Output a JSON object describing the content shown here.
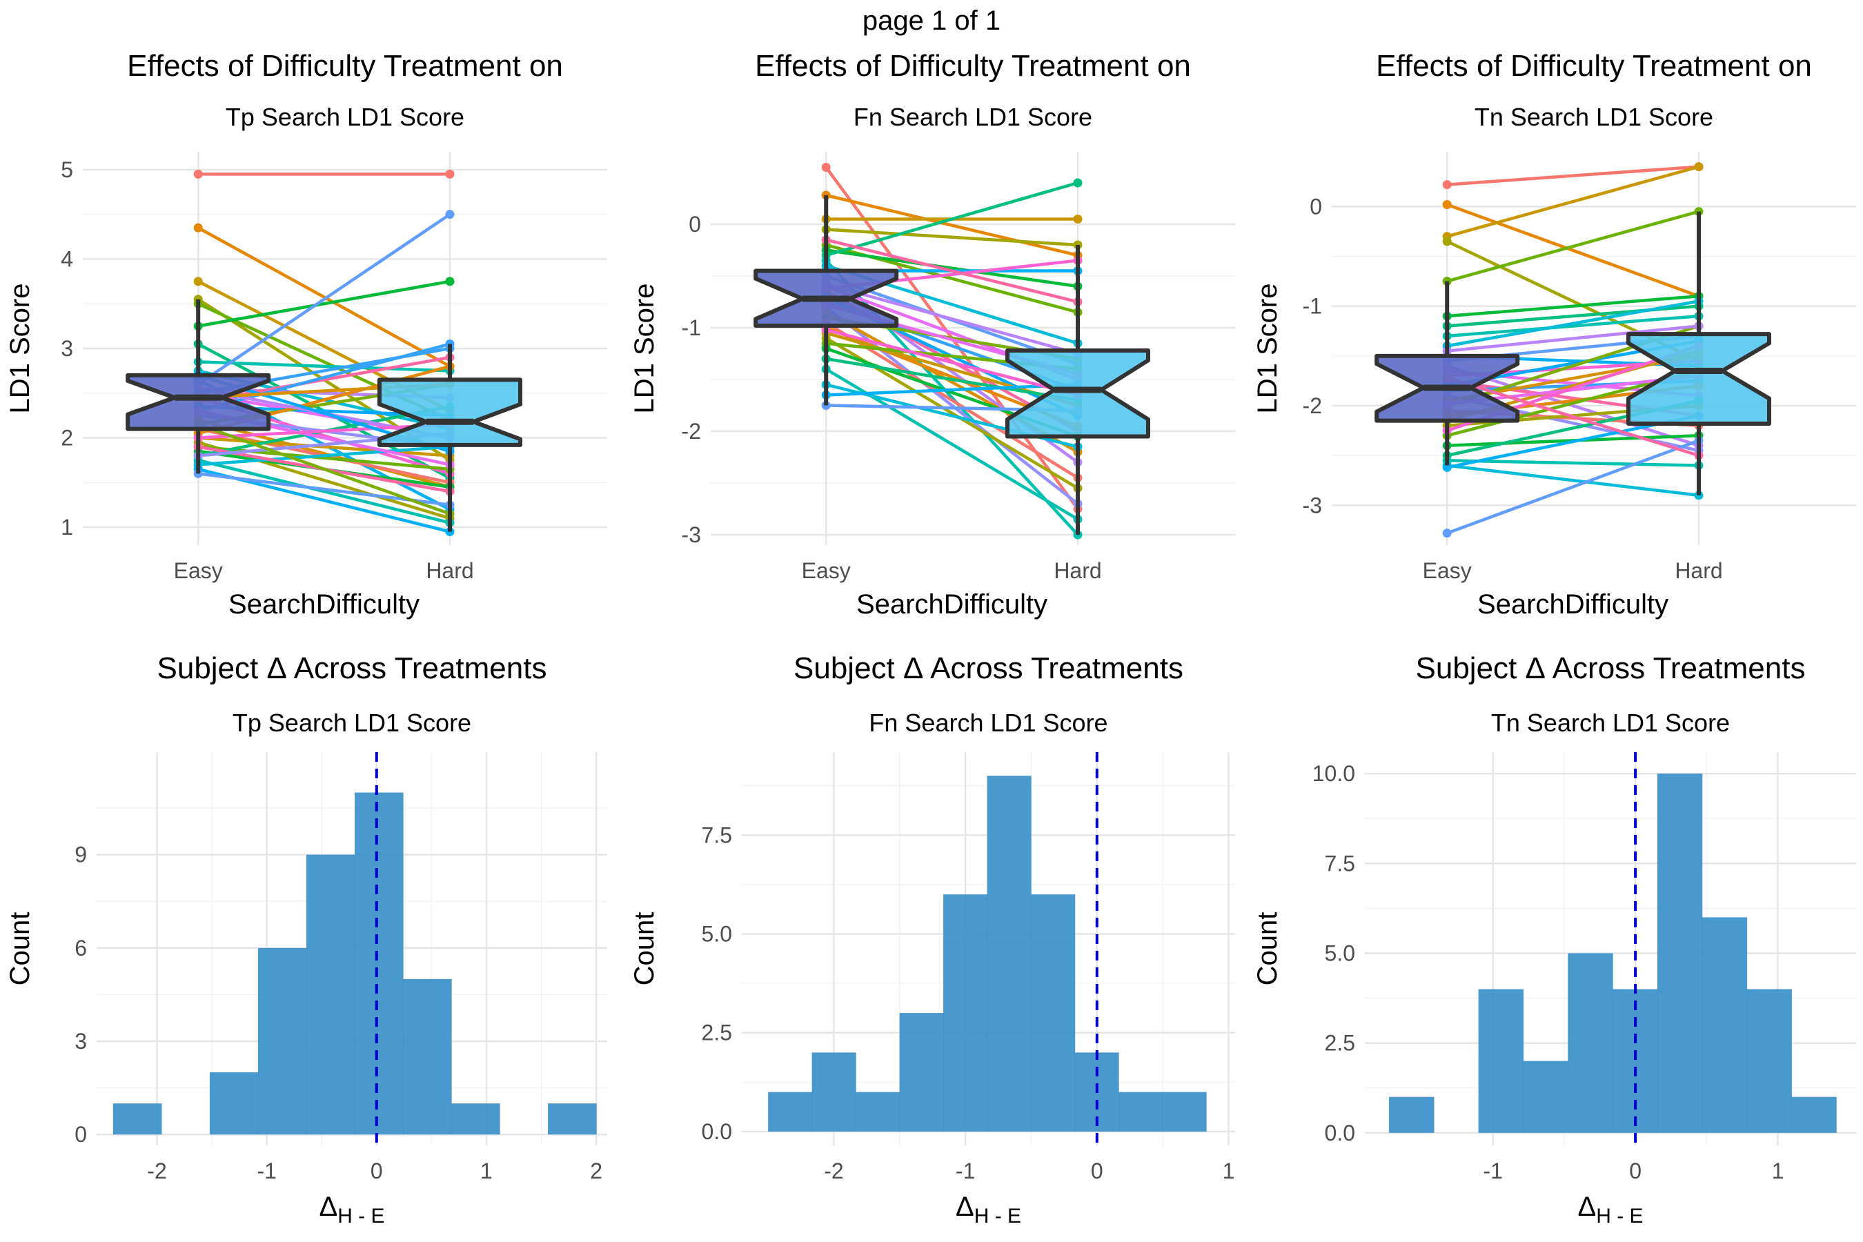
{
  "page_title": "page 1 of 1",
  "colors": {
    "box_easy": "#5b6cc6",
    "box_hard": "#55c8f0",
    "hist": "#3a8fca",
    "ref": "#0000cc"
  },
  "chart_data": [
    {
      "type": "box+paired-lines",
      "title": "Effects of Difficulty Treatment on",
      "subtitle": "Tp Search LD1 Score",
      "xlabel": "SearchDifficulty",
      "ylabel": "LD1 Score",
      "categories": [
        "Easy",
        "Hard"
      ],
      "ylim": [
        0.8,
        5.2
      ],
      "yticks": [
        1,
        2,
        3,
        4,
        5
      ],
      "box": [
        {
          "category": "Easy",
          "min": 1.6,
          "q1": 2.1,
          "median": 2.45,
          "q3": 2.7,
          "max": 3.55
        },
        {
          "category": "Hard",
          "min": 0.95,
          "q1": 1.92,
          "median": 2.18,
          "q3": 2.65,
          "max": 3.05
        }
      ],
      "pairs": [
        [
          4.95,
          4.95
        ],
        [
          4.35,
          2.8
        ],
        [
          3.75,
          2.3
        ],
        [
          3.55,
          1.75
        ],
        [
          3.5,
          2.2
        ],
        [
          3.25,
          3.75
        ],
        [
          3.05,
          1.55
        ],
        [
          2.85,
          2.75
        ],
        [
          2.75,
          2.1
        ],
        [
          2.65,
          1.2
        ],
        [
          2.6,
          4.5
        ],
        [
          2.55,
          2.45
        ],
        [
          2.5,
          2.0
        ],
        [
          2.45,
          1.6
        ],
        [
          2.4,
          2.9
        ],
        [
          2.35,
          2.25
        ],
        [
          2.3,
          3.05
        ],
        [
          2.25,
          1.9
        ],
        [
          2.2,
          1.45
        ],
        [
          2.15,
          2.6
        ],
        [
          2.1,
          1.5
        ],
        [
          2.05,
          2.8
        ],
        [
          2.0,
          1.8
        ],
        [
          1.95,
          1.1
        ],
        [
          1.9,
          1.65
        ],
        [
          1.85,
          1.45
        ],
        [
          1.8,
          2.35
        ],
        [
          1.75,
          1.05
        ],
        [
          1.7,
          1.9
        ],
        [
          1.65,
          0.95
        ],
        [
          1.6,
          1.25
        ],
        [
          2.55,
          2.0
        ],
        [
          2.3,
          1.7
        ],
        [
          2.0,
          2.15
        ],
        [
          1.9,
          1.4
        ],
        [
          2.7,
          1.85
        ],
        [
          2.5,
          3.0
        ],
        [
          1.8,
          2.05
        ],
        [
          2.45,
          2.6
        ],
        [
          2.15,
          1.15
        ]
      ]
    },
    {
      "type": "box+paired-lines",
      "title": "Effects of Difficulty Treatment on",
      "subtitle": "Fn Search LD1 Score",
      "xlabel": "SearchDifficulty",
      "ylabel": "LD1 Score",
      "categories": [
        "Easy",
        "Hard"
      ],
      "ylim": [
        -3.1,
        0.7
      ],
      "yticks": [
        -3,
        -2,
        -1,
        0
      ],
      "box": [
        {
          "category": "Easy",
          "min": -1.75,
          "q1": -0.98,
          "median": -0.72,
          "q3": -0.45,
          "max": 0.28
        },
        {
          "category": "Hard",
          "min": -3.0,
          "q1": -2.05,
          "median": -1.6,
          "q3": -1.22,
          "max": -0.2
        }
      ],
      "pairs": [
        [
          0.55,
          -2.75
        ],
        [
          0.28,
          -0.3
        ],
        [
          0.05,
          0.05
        ],
        [
          -0.05,
          -0.2
        ],
        [
          -0.2,
          -0.85
        ],
        [
          -0.25,
          -0.6
        ],
        [
          -0.3,
          0.4
        ],
        [
          -0.35,
          -3.0
        ],
        [
          -0.4,
          -1.15
        ],
        [
          -0.45,
          -0.45
        ],
        [
          -0.5,
          -1.35
        ],
        [
          -0.55,
          -2.3
        ],
        [
          -0.6,
          -1.5
        ],
        [
          -0.62,
          -0.35
        ],
        [
          -0.65,
          -2.0
        ],
        [
          -0.7,
          -1.85
        ],
        [
          -0.75,
          -1.6
        ],
        [
          -0.8,
          -2.7
        ],
        [
          -0.85,
          -2.2
        ],
        [
          -0.9,
          -1.3
        ],
        [
          -0.95,
          -2.45
        ],
        [
          -1.0,
          -1.95
        ],
        [
          -1.05,
          -1.75
        ],
        [
          -1.1,
          -2.55
        ],
        [
          -1.15,
          -1.4
        ],
        [
          -1.2,
          -2.05
        ],
        [
          -1.3,
          -1.7
        ],
        [
          -1.4,
          -2.85
        ],
        [
          -1.55,
          -2.15
        ],
        [
          -1.65,
          -1.55
        ],
        [
          -1.75,
          -1.8
        ],
        [
          -0.58,
          -1.25
        ],
        [
          -0.78,
          -1.45
        ],
        [
          -1.02,
          -1.65
        ],
        [
          -0.15,
          -0.75
        ]
      ]
    },
    {
      "type": "box+paired-lines",
      "title": "Effects of Difficulty Treatment on",
      "subtitle": "Tn Search LD1 Score",
      "xlabel": "SearchDifficulty",
      "ylabel": "LD1 Score",
      "categories": [
        "Easy",
        "Hard"
      ],
      "ylim": [
        -3.4,
        0.55
      ],
      "yticks": [
        -3,
        -2,
        -1,
        0
      ],
      "box": [
        {
          "category": "Easy",
          "min": -2.6,
          "q1": -2.15,
          "median": -1.82,
          "q3": -1.5,
          "max": -0.75
        },
        {
          "category": "Hard",
          "min": -2.9,
          "q1": -2.18,
          "median": -1.65,
          "q3": -1.28,
          "max": -0.05
        }
      ],
      "pairs": [
        [
          0.22,
          0.4
        ],
        [
          0.02,
          -0.9
        ],
        [
          -0.3,
          0.4
        ],
        [
          -0.35,
          -1.55
        ],
        [
          -0.75,
          -0.05
        ],
        [
          -1.1,
          -0.9
        ],
        [
          -1.2,
          -1.0
        ],
        [
          -1.3,
          -1.1
        ],
        [
          -1.4,
          -0.95
        ],
        [
          -1.5,
          -1.6
        ],
        [
          -1.55,
          -1.3
        ],
        [
          -1.6,
          -2.4
        ],
        [
          -1.65,
          -1.9
        ],
        [
          -1.7,
          -1.55
        ],
        [
          -1.75,
          -2.1
        ],
        [
          -1.8,
          -1.35
        ],
        [
          -1.85,
          -1.75
        ],
        [
          -1.9,
          -2.45
        ],
        [
          -1.95,
          -1.5
        ],
        [
          -2.0,
          -1.2
        ],
        [
          -2.05,
          -2.2
        ],
        [
          -2.1,
          -1.8
        ],
        [
          -2.15,
          -1.45
        ],
        [
          -2.2,
          -2.0
        ],
        [
          -2.3,
          -1.65
        ],
        [
          -2.4,
          -2.3
        ],
        [
          -2.5,
          -1.95
        ],
        [
          -2.55,
          -2.6
        ],
        [
          -2.6,
          -2.9
        ],
        [
          -2.62,
          -2.1
        ],
        [
          -3.28,
          -2.35
        ],
        [
          -1.45,
          -1.2
        ],
        [
          -1.98,
          -1.7
        ],
        [
          -2.25,
          -1.4
        ],
        [
          -1.72,
          -2.5
        ]
      ]
    },
    {
      "type": "histogram",
      "title": "Subject Δ Across Treatments",
      "subtitle": "Tp Search LD1 Score",
      "xlabel": "Δ",
      "xlabel_sub": "H - E",
      "ylabel": "Count",
      "xlim": [
        -2.55,
        2.1
      ],
      "ylim": [
        -0.35,
        12.3
      ],
      "xticks": [
        -2,
        -1,
        0,
        1,
        2
      ],
      "yticks": [
        0,
        3,
        6,
        9
      ],
      "bin_start": -2.4,
      "bin_width": 0.44,
      "counts": [
        1,
        0,
        2,
        6,
        9,
        11,
        5,
        1,
        0,
        1
      ],
      "ref_x": 0
    },
    {
      "type": "histogram",
      "title": "Subject Δ Across Treatments",
      "subtitle": "Fn Search LD1 Score",
      "xlabel": "Δ",
      "xlabel_sub": "H - E",
      "ylabel": "Count",
      "xlim": [
        -2.7,
        1.05
      ],
      "ylim": [
        -0.35,
        9.6
      ],
      "xticks": [
        -2,
        -1,
        0,
        1
      ],
      "yticks": [
        0.0,
        2.5,
        5.0,
        7.5
      ],
      "bin_start": -2.5,
      "bin_width": 0.333,
      "counts": [
        1,
        2,
        1,
        3,
        6,
        9,
        6,
        2,
        1,
        1
      ],
      "ref_x": 0
    },
    {
      "type": "histogram",
      "title": "Subject Δ Across Treatments",
      "subtitle": "Tn Search LD1 Score",
      "xlabel": "Δ",
      "xlabel_sub": "H - E",
      "ylabel": "Count",
      "xlim": [
        -1.9,
        1.55
      ],
      "ylim": [
        -0.35,
        10.6
      ],
      "xticks": [
        -1,
        0,
        1
      ],
      "yticks": [
        0.0,
        2.5,
        5.0,
        7.5,
        10.0
      ],
      "bin_start": -1.73,
      "bin_width": 0.314,
      "counts": [
        1,
        0,
        4,
        2,
        5,
        4,
        10,
        6,
        4,
        1
      ],
      "ref_x": 0
    }
  ]
}
